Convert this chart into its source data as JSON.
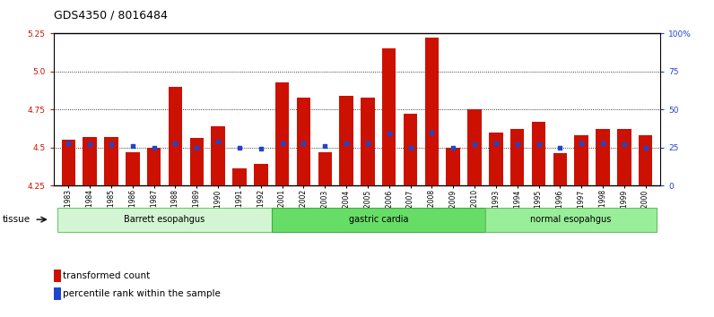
{
  "title": "GDS4350 / 8016484",
  "samples": [
    "GSM851983",
    "GSM851984",
    "GSM851985",
    "GSM851986",
    "GSM851987",
    "GSM851988",
    "GSM851989",
    "GSM851990",
    "GSM851991",
    "GSM851992",
    "GSM852001",
    "GSM852002",
    "GSM852003",
    "GSM852004",
    "GSM852005",
    "GSM852006",
    "GSM852007",
    "GSM852008",
    "GSM852009",
    "GSM852010",
    "GSM851993",
    "GSM851994",
    "GSM851995",
    "GSM851996",
    "GSM851997",
    "GSM851998",
    "GSM851999",
    "GSM852000"
  ],
  "bar_values": [
    4.55,
    4.57,
    4.57,
    4.47,
    4.5,
    4.9,
    4.56,
    4.64,
    4.36,
    4.39,
    4.93,
    4.83,
    4.47,
    4.84,
    4.83,
    5.15,
    4.72,
    5.22,
    4.5,
    4.75,
    4.6,
    4.62,
    4.67,
    4.46,
    4.58,
    4.62,
    4.62,
    4.58
  ],
  "percentile_values": [
    28,
    27,
    27,
    26,
    25,
    28,
    25,
    29,
    25,
    24,
    28,
    28,
    26,
    28,
    28,
    34,
    25,
    35,
    25,
    27,
    28,
    27,
    27,
    25,
    28,
    28,
    27,
    25
  ],
  "groups": [
    {
      "label": "Barrett esopahgus",
      "start": 0,
      "end": 9,
      "color": "#d4f5d4",
      "edgecolor": "#66cc66"
    },
    {
      "label": "gastric cardia",
      "start": 10,
      "end": 19,
      "color": "#66dd66",
      "edgecolor": "#44aa44"
    },
    {
      "label": "normal esopahgus",
      "start": 20,
      "end": 27,
      "color": "#99ee99",
      "edgecolor": "#66bb66"
    }
  ],
  "ylim_left": [
    4.25,
    5.25
  ],
  "ylim_right": [
    0,
    100
  ],
  "yticks_left": [
    4.25,
    4.5,
    4.75,
    5.0,
    5.25
  ],
  "yticks_right": [
    0,
    25,
    50,
    75,
    100
  ],
  "ytick_labels_right": [
    "0",
    "25",
    "50",
    "75",
    "100%"
  ],
  "hlines": [
    4.5,
    4.75,
    5.0
  ],
  "bar_color": "#cc1100",
  "dot_color": "#2244cc",
  "bar_width": 0.65,
  "background_color": "#ffffff",
  "title_fontsize": 9,
  "tick_fontsize": 6.5,
  "xtick_fontsize": 5.5,
  "legend_label_bar": "transformed count",
  "legend_label_dot": "percentile rank within the sample",
  "tissue_label": "tissue"
}
